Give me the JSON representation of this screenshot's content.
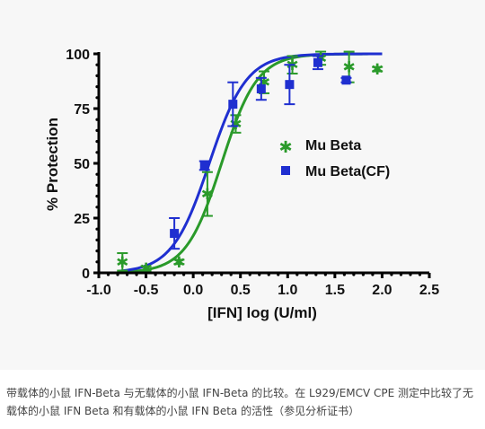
{
  "caption": "带载体的小鼠 IFN-Beta 与无载体的小鼠 IFN-Beta 的比较。在 L929/EMCV CPE 测定中比较了无载体的小鼠 IFN Beta 和有载体的小鼠 IFN Beta 的活性（参见分析证书）",
  "chart_data": {
    "type": "scatter",
    "title": "",
    "xlabel": "[IFN] log (U/ml)",
    "ylabel": "% Protection",
    "xlim": [
      -1.0,
      2.5
    ],
    "ylim": [
      0,
      100
    ],
    "xticks": [
      -1.0,
      -0.5,
      0.0,
      0.5,
      1.0,
      1.5,
      2.0,
      2.5
    ],
    "xtick_labels": [
      "-1.0",
      "-0.5",
      "0.0",
      "0.5",
      "1.0",
      "1.5",
      "2.0",
      "2.5"
    ],
    "yticks": [
      0,
      25,
      50,
      75,
      100
    ],
    "ytick_labels": [
      "0",
      "25",
      "50",
      "75",
      "100"
    ],
    "grid": false,
    "legend_position": "center-right",
    "series": [
      {
        "name": "Mu Beta",
        "marker": "star",
        "color": "#2a9a2a",
        "curve_ec50_log": 0.3,
        "curve_hill": 2.3,
        "points": [
          {
            "x": -0.75,
            "y": 5,
            "err": 4
          },
          {
            "x": -0.5,
            "y": 2,
            "err": 1
          },
          {
            "x": -0.15,
            "y": 5,
            "err": 1
          },
          {
            "x": 0.15,
            "y": 36,
            "err": 10
          },
          {
            "x": 0.45,
            "y": 68,
            "err": 4
          },
          {
            "x": 0.75,
            "y": 87,
            "err": 5
          },
          {
            "x": 1.05,
            "y": 95,
            "err": 4
          },
          {
            "x": 1.35,
            "y": 98,
            "err": 3
          },
          {
            "x": 1.65,
            "y": 94,
            "err": 7
          },
          {
            "x": 1.95,
            "y": 93,
            "err": 1
          }
        ]
      },
      {
        "name": "Mu Beta(CF)",
        "marker": "square",
        "color": "#1f2fd0",
        "curve_ec50_log": 0.17,
        "curve_hill": 2.2,
        "points": [
          {
            "x": -0.2,
            "y": 18,
            "err": 7
          },
          {
            "x": 0.12,
            "y": 49,
            "err": 2
          },
          {
            "x": 0.42,
            "y": 77,
            "err": 10
          },
          {
            "x": 0.72,
            "y": 84,
            "err": 5
          },
          {
            "x": 1.02,
            "y": 86,
            "err": 9
          },
          {
            "x": 1.32,
            "y": 96,
            "err": 3
          },
          {
            "x": 1.62,
            "y": 88,
            "err": 1
          }
        ]
      }
    ]
  }
}
